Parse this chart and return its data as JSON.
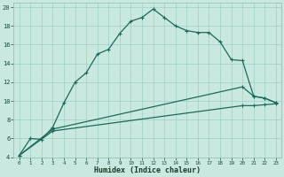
{
  "xlabel": "Humidex (Indice chaleur)",
  "bg_color": "#c8e8e0",
  "grid_color": "#9ecfca",
  "line_color": "#1a6b5a",
  "xlim": [
    -0.5,
    23.5
  ],
  "ylim": [
    4,
    20.5
  ],
  "yticks": [
    4,
    6,
    8,
    10,
    12,
    14,
    16,
    18,
    20
  ],
  "line1_x": [
    0,
    1,
    2,
    3,
    4,
    5,
    6,
    7,
    8,
    9,
    10,
    11,
    12,
    13,
    14,
    15,
    16,
    17,
    18,
    19,
    20,
    21,
    22,
    23
  ],
  "line1_y": [
    4.2,
    6.0,
    5.9,
    7.2,
    9.8,
    12.0,
    13.0,
    15.0,
    15.5,
    17.2,
    18.5,
    18.9,
    19.8,
    18.9,
    18.0,
    17.5,
    17.3,
    17.3,
    16.3,
    14.4,
    14.3,
    10.5,
    10.3,
    9.8
  ],
  "line2_x": [
    0,
    3,
    20,
    21,
    22,
    23
  ],
  "line2_y": [
    4.2,
    7.0,
    11.5,
    10.5,
    10.3,
    9.8
  ],
  "line3_x": [
    0,
    3,
    20,
    21,
    22,
    23
  ],
  "line3_y": [
    4.2,
    6.8,
    9.5,
    9.5,
    9.6,
    9.7
  ]
}
